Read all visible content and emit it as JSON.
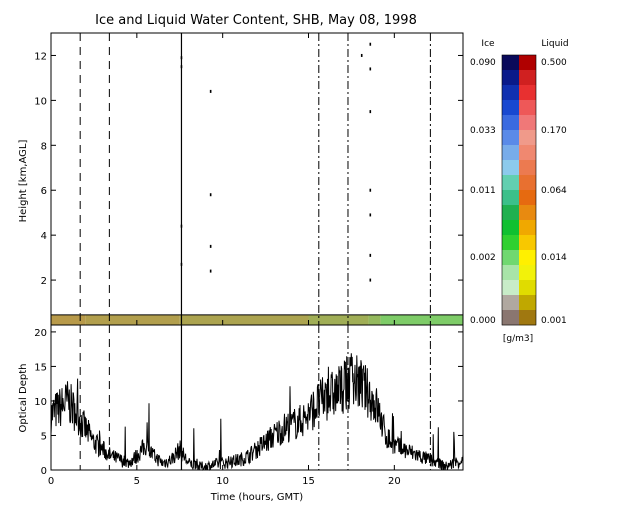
{
  "chart_data": [
    {
      "type": "heatmap",
      "title": "Ice and Liquid Water Content, SHB, May 08, 1998",
      "ylabel": "Height [km,AGL]",
      "xlim": [
        0,
        24
      ],
      "ylim": [
        0,
        13
      ],
      "y_ticks": [
        2,
        4,
        6,
        8,
        10,
        12
      ],
      "x_ticks_unlabeled": [
        0,
        5,
        10,
        15,
        20
      ],
      "event_lines": [
        {
          "x": 1.7,
          "style": "dashed"
        },
        {
          "x": 3.4,
          "style": "dashed"
        },
        {
          "x": 15.6,
          "style": "dashdot"
        },
        {
          "x": 17.3,
          "style": "dashdot"
        },
        {
          "x": 22.1,
          "style": "dashdot"
        }
      ],
      "solid_line": {
        "x": 7.6
      },
      "low_cloud_layer": {
        "base_km": 0.0,
        "top_km": 0.45,
        "segments": [
          {
            "x0": 0,
            "x1": 2,
            "level": 0.6
          },
          {
            "x0": 2,
            "x1": 7.5,
            "level": 0.55
          },
          {
            "x0": 7.5,
            "x1": 15,
            "level": 0.5
          },
          {
            "x0": 15,
            "x1": 18.5,
            "level": 0.4
          },
          {
            "x0": 18.5,
            "x1": 19.2,
            "level": 0.3
          },
          {
            "x0": 19.2,
            "x1": 24,
            "level": 0.12
          }
        ]
      },
      "specks": [
        {
          "x": 7.6,
          "y": 11.9
        },
        {
          "x": 7.6,
          "y": 11.5
        },
        {
          "x": 7.6,
          "y": 4.4
        },
        {
          "x": 7.6,
          "y": 2.7
        },
        {
          "x": 9.3,
          "y": 10.4
        },
        {
          "x": 9.3,
          "y": 5.8
        },
        {
          "x": 9.3,
          "y": 3.5
        },
        {
          "x": 9.3,
          "y": 2.4
        },
        {
          "x": 18.1,
          "y": 12.0
        },
        {
          "x": 18.6,
          "y": 12.5
        },
        {
          "x": 18.6,
          "y": 11.4
        },
        {
          "x": 18.6,
          "y": 9.5
        },
        {
          "x": 18.6,
          "y": 6.0
        },
        {
          "x": 18.6,
          "y": 4.9
        },
        {
          "x": 18.6,
          "y": 3.1
        },
        {
          "x": 18.6,
          "y": 2.0
        }
      ]
    },
    {
      "type": "line",
      "ylabel": "Optical Depth",
      "xlabel": "Time (hours, GMT)",
      "xlim": [
        0,
        24
      ],
      "ylim": [
        0,
        21
      ],
      "x_ticks": [
        0,
        5,
        10,
        15,
        20
      ],
      "y_ticks": [
        0,
        5,
        10,
        15,
        20
      ],
      "x": [
        0,
        0.5,
        1,
        1.5,
        2,
        2.5,
        3,
        3.5,
        4,
        4.5,
        5,
        5.5,
        6,
        6.5,
        7,
        7.5,
        8,
        8.5,
        9,
        9.5,
        10,
        10.5,
        11,
        11.5,
        12,
        12.5,
        13,
        13.5,
        14,
        14.5,
        15,
        15.5,
        16,
        16.5,
        17,
        17.5,
        18,
        18.5,
        19,
        19.5,
        20,
        20.5,
        21,
        21.5,
        22,
        22.5,
        23,
        23.5,
        24
      ],
      "values": [
        8,
        9,
        10,
        8,
        6,
        4,
        3,
        2,
        1.5,
        1,
        2,
        3.5,
        2,
        1,
        1.5,
        3,
        1,
        0.5,
        0.5,
        0.8,
        1,
        1.2,
        1.5,
        2,
        3,
        4,
        5,
        6,
        6.5,
        7,
        8,
        9.5,
        10.5,
        11,
        12,
        13,
        12.5,
        11,
        9,
        5,
        3.5,
        3,
        2.5,
        2,
        1.5,
        1,
        0.5,
        1,
        1.5
      ],
      "event_lines": [
        {
          "x": 1.7,
          "style": "dashed"
        },
        {
          "x": 3.4,
          "style": "dashed"
        },
        {
          "x": 15.6,
          "style": "dashdot"
        },
        {
          "x": 17.3,
          "style": "dashdot"
        },
        {
          "x": 22.1,
          "style": "dashdot"
        }
      ],
      "solid_line": {
        "x": 7.6
      }
    }
  ],
  "colorbar": {
    "ice_header": "Ice",
    "liquid_header": "Liquid",
    "unit": "[g/m3]",
    "ice_ticks": [
      "0.090",
      "0.033",
      "0.011",
      "0.002",
      "0.000"
    ],
    "liquid_ticks": [
      "0.500",
      "0.170",
      "0.064",
      "0.014",
      "0.001"
    ],
    "ice_colors": [
      "#0a0a5a",
      "#0a1a8a",
      "#1030b0",
      "#1848d0",
      "#3a6ae0",
      "#5a8ae8",
      "#78acea",
      "#8ccaec",
      "#62cfb0",
      "#3cc08a",
      "#20b050",
      "#10c030",
      "#30d030",
      "#70d870",
      "#a8e4a8",
      "#c8ecc8",
      "#b0a8a0",
      "#8a7670"
    ],
    "liquid_colors": [
      "#b00000",
      "#d02020",
      "#e83030",
      "#ee5858",
      "#f07878",
      "#f09a8a",
      "#f08870",
      "#ec7a50",
      "#e87030",
      "#e66a10",
      "#e88a10",
      "#f0a800",
      "#f8c800",
      "#fff000",
      "#f2f20a",
      "#e0dc00",
      "#c0a800",
      "#a07810"
    ]
  },
  "colors": {
    "axis": "#000000",
    "trace": "#000000",
    "layer_low": "#70d870",
    "layer_high": "#e87030",
    "speck": "#000000"
  }
}
